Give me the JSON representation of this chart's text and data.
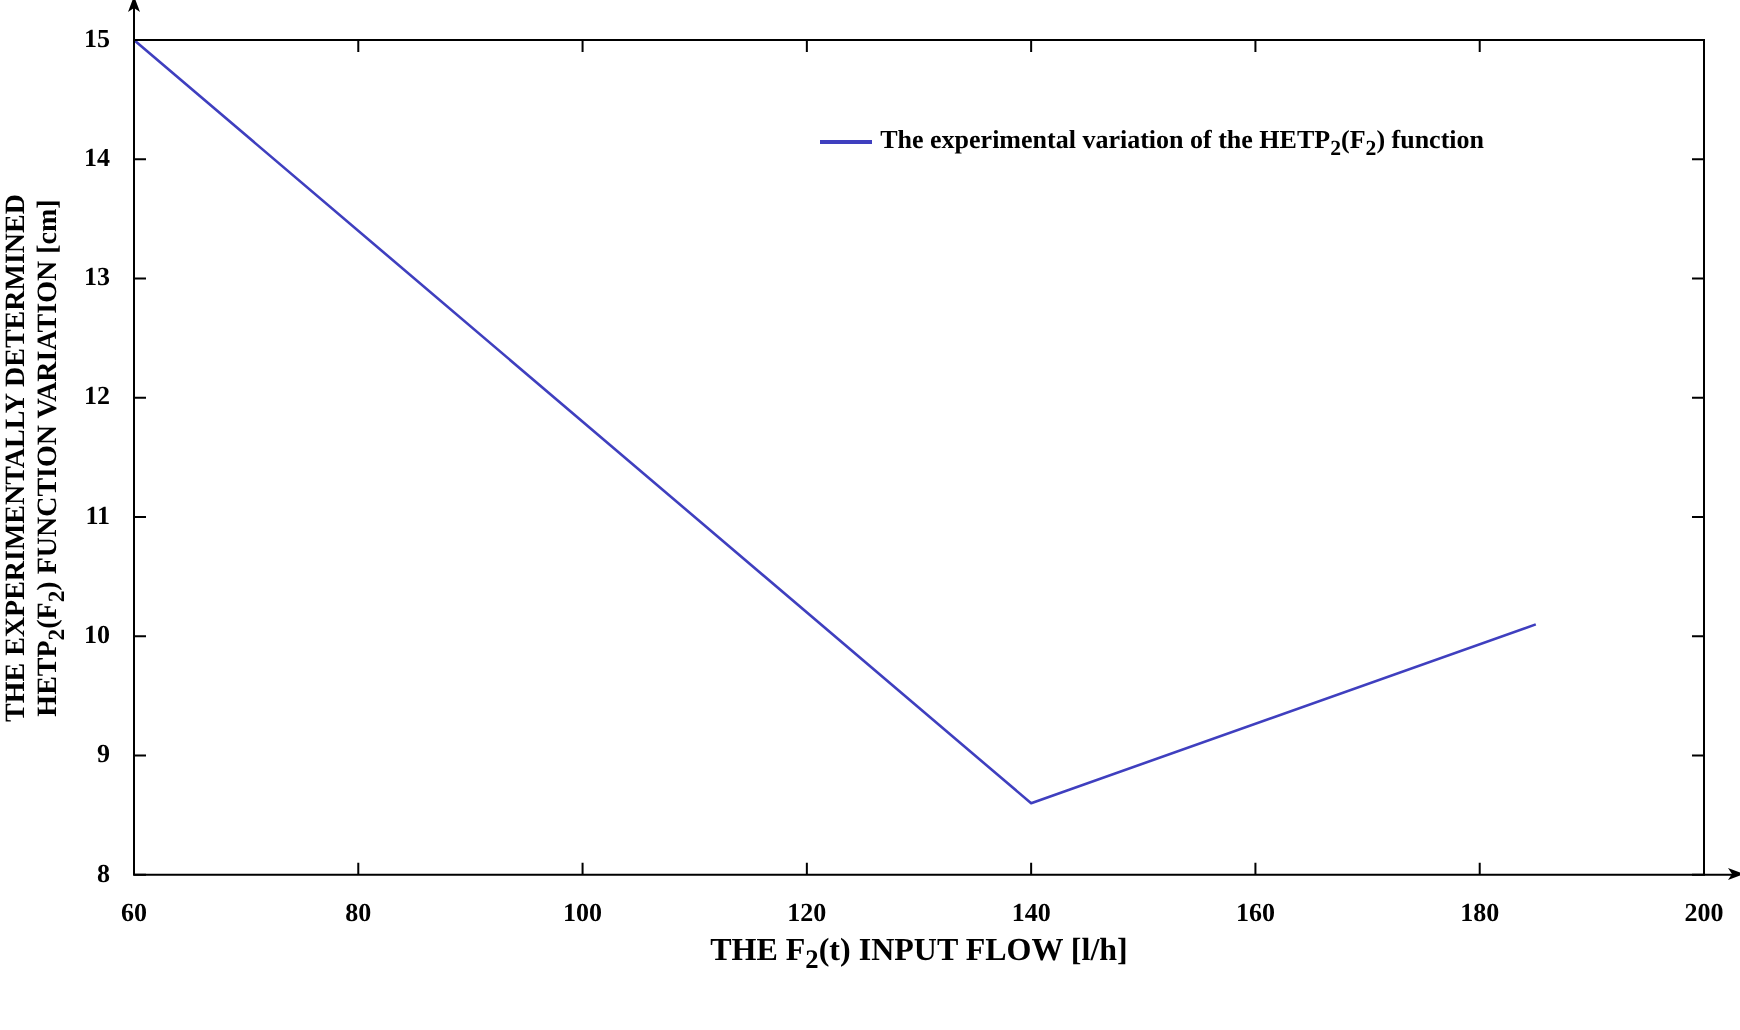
{
  "chart_data": {
    "type": "line",
    "xlabel": "THE F$_{2}$(t) INPUT FLOW [l/h]",
    "ylabel": "THE EXPERIMENTALLY DETERMINED\nHETP$_{2}$(F$_{2}$) FUNCTION VARIATION [cm]",
    "x": [
      60,
      140,
      185
    ],
    "series": [
      {
        "name": "The experimental variation of the HETP$_{2}$(F$_{2}$) function",
        "color": "#3f3fbf",
        "values": [
          15,
          8.6,
          10.1
        ]
      }
    ],
    "xlim": [
      60,
      200
    ],
    "xticks": [
      60,
      80,
      100,
      120,
      140,
      160,
      180,
      200
    ],
    "ylim": [
      8,
      15
    ],
    "yticks": [
      8,
      9,
      10,
      11,
      12,
      13,
      14,
      15
    ],
    "legend": "top right",
    "marker": "none",
    "line_style": "solid"
  }
}
